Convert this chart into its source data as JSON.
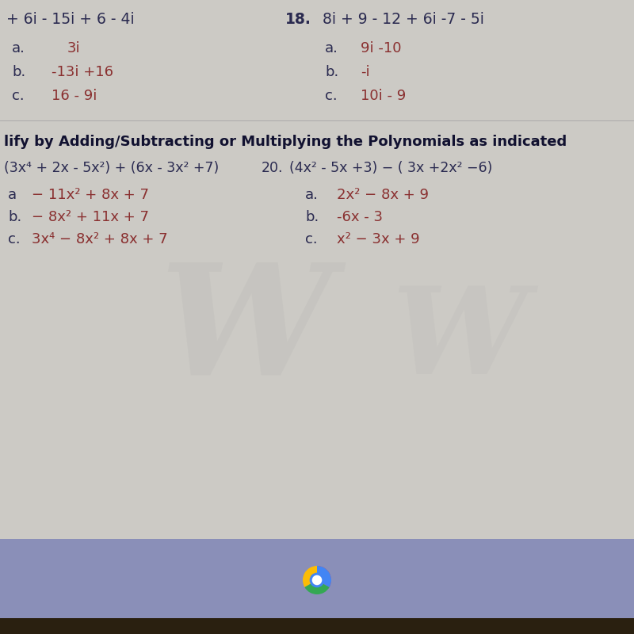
{
  "bg_main": "#c8c5c0",
  "bg_bottom_bar": "#8a8fb0",
  "bg_dark_bar": "#2a2010",
  "text_dark": "#2a2a50",
  "text_answer": "#8a3030",
  "text_bold": "#1a1a3a",
  "top_left": "+ 6i - 15i + 6 - 4i",
  "q18_label": "18.",
  "q18_problem": "  8i + 9 - 12 + 6i -7 - 5i",
  "q17_a_label": "a.",
  "q17_a": "3i",
  "q17_b_label": "b.",
  "q17_b": "-13i +16",
  "q17_c_label": "c.",
  "q17_c": "16 - 9i",
  "q18_a_label": "a.",
  "q18_a": "9i -10",
  "q18_b_label": "b.",
  "q18_b": "-i",
  "q18_c_label": "c.",
  "q18_c": "10i - 9",
  "section_title": "lify by Adding/Subtracting or Multiplying the Polynomials as indicated",
  "q19_label": "",
  "q20_num": "20.",
  "q19_a_label": "a",
  "q19_b_label": "b.",
  "q19_c_label": "c.",
  "q20_a_label": "a.",
  "q20_b_label": "b.",
  "q20_c_label": "c."
}
